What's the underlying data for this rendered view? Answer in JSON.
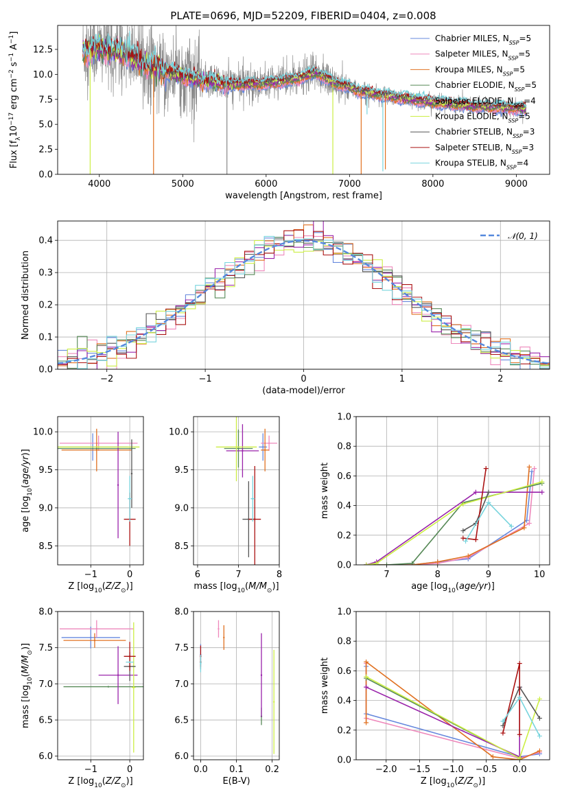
{
  "title": "PLATE=0696, MJD=52209, FIBERID=0404, z=0.008",
  "colors": {
    "Chabrier MILES": "#6688dd",
    "Salpeter MILES": "#ee88bb",
    "Kroupa MILES": "#e07020",
    "Chabrier ELODIE": "#558855",
    "Salpeter ELODIE": "#9922aa",
    "Kroupa ELODIE": "#ccee44",
    "Chabrier STELIB": "#555555",
    "Salpeter STELIB": "#aa1111",
    "Kroupa STELIB": "#77d4dd",
    "data": "#888888",
    "gaussian": "#5588dd"
  },
  "legend_spectrum": [
    {
      "base": "Chabrier MILES, N",
      "sub": "SSP",
      "tail": "=5"
    },
    {
      "base": "Salpeter MILES, N",
      "sub": "SSP",
      "tail": "=5"
    },
    {
      "base": "Kroupa MILES, N",
      "sub": "SSP",
      "tail": "=5"
    },
    {
      "base": "Chabrier ELODIE, N",
      "sub": "SSP",
      "tail": "=5"
    },
    {
      "base": "Salpeter ELODIE, N",
      "sub": "SSP",
      "tail": "=4"
    },
    {
      "base": "Kroupa ELODIE, N",
      "sub": "SSP",
      "tail": "=5"
    },
    {
      "base": "Chabrier STELIB, N",
      "sub": "SSP",
      "tail": "=3"
    },
    {
      "base": "Salpeter STELIB, N",
      "sub": "SSP",
      "tail": "=3"
    },
    {
      "base": "Kroupa STELIB, N",
      "sub": "SSP",
      "tail": "=4"
    }
  ],
  "legend_hist": "𝒩(0, 1)",
  "chart_data": [
    {
      "id": "spectrum",
      "type": "line",
      "title": "PLATE=0696, MJD=52209, FIBERID=0404, z=0.008",
      "xlabel": "wavelength [Angstrom, rest frame]",
      "ylabel": "Flux [f",
      "ylabel_full": "Flux [fλ10⁻¹⁷ erg cm⁻² s⁻¹ A⁻¹]",
      "xlim": [
        3500,
        9400
      ],
      "ylim": [
        0,
        14.9
      ],
      "xticks": [
        4000,
        5000,
        6000,
        7000,
        8000,
        9000
      ],
      "yticks": [
        0.0,
        2.5,
        5.0,
        7.5,
        10.0,
        12.5
      ],
      "continuum": [
        [
          3800,
          12.3
        ],
        [
          4000,
          12.6
        ],
        [
          4300,
          12.2
        ],
        [
          4500,
          11.2
        ],
        [
          4800,
          10.3
        ],
        [
          5200,
          9.4
        ],
        [
          5600,
          9.0
        ],
        [
          6000,
          9.1
        ],
        [
          6400,
          9.6
        ],
        [
          6600,
          10.2
        ],
        [
          6800,
          9.2
        ],
        [
          7200,
          8.2
        ],
        [
          7500,
          7.8
        ],
        [
          8000,
          7.2
        ],
        [
          8500,
          6.8
        ],
        [
          9000,
          6.6
        ],
        [
          9120,
          6.5
        ]
      ],
      "model_range": [
        3800,
        9120
      ],
      "absorption_lines": [
        {
          "x": 3890,
          "depth": 0.0,
          "series": "Kroupa ELODIE"
        },
        {
          "x": 4650,
          "depth": 0.0,
          "series": "Kroupa MILES"
        },
        {
          "x": 5530,
          "depth": 0.0,
          "series": "data"
        },
        {
          "x": 6800,
          "depth": 0.0,
          "series": "Kroupa ELODIE"
        },
        {
          "x": 7140,
          "depth": 0.0,
          "series": "Kroupa MILES"
        },
        {
          "x": 7400,
          "depth": 0.3,
          "series": "Kroupa STELIB"
        },
        {
          "x": 7430,
          "depth": 0.5,
          "series": "Kroupa MILES"
        },
        {
          "x": 7210,
          "depth": 6.0,
          "series": "Kroupa STELIB"
        }
      ]
    },
    {
      "id": "residual_hist",
      "type": "bar",
      "xlabel": "(data-model)/error",
      "ylabel": "Normed distribution",
      "xlim": [
        -2.5,
        2.5
      ],
      "ylim": [
        0,
        0.46
      ],
      "xticks": [
        -2,
        -1,
        0,
        1,
        2
      ],
      "yticks": [
        0.0,
        0.1,
        0.2,
        0.3,
        0.4
      ],
      "bin_width": 0.1,
      "gaussian": {
        "mean": 0,
        "sigma": 1,
        "label": "𝒩(0, 1)"
      }
    },
    {
      "id": "age_vs_Z",
      "type": "scatter",
      "xlabel": "Z [log10(Z/Z⊙)]",
      "ylabel": "age  [log10(age/yr)]",
      "xlim": [
        -1.85,
        0.35
      ],
      "ylim": [
        8.25,
        10.2
      ],
      "xticks": [
        -1,
        0
      ],
      "yticks": [
        8.5,
        9.0,
        9.5,
        10.0
      ],
      "points": [
        {
          "series": "Chabrier MILES",
          "x": -0.95,
          "y": 9.8,
          "xerr": 0.9,
          "yerr": 0.18
        },
        {
          "series": "Salpeter MILES",
          "x": -0.8,
          "y": 9.85,
          "xerr": 1.0,
          "yerr": 0.1
        },
        {
          "series": "Kroupa MILES",
          "x": -0.85,
          "y": 9.76,
          "xerr": 0.9,
          "yerr": 0.28
        },
        {
          "series": "Chabrier ELODIE",
          "x": -0.85,
          "y": 9.78,
          "xerr": 1.0,
          "yerr": 0.0
        },
        {
          "series": "Salpeter ELODIE",
          "x": -0.3,
          "y": 9.3,
          "xerr": 0.0,
          "yerr": 0.7
        },
        {
          "series": "Kroupa ELODIE",
          "x": -0.8,
          "y": 9.8,
          "xerr": 1.05,
          "yerr": 0.0
        },
        {
          "series": "Chabrier STELIB",
          "x": 0.05,
          "y": 9.45,
          "xerr": 0.0,
          "yerr": 0.45
        },
        {
          "series": "Salpeter STELIB",
          "x": 0.0,
          "y": 8.85,
          "xerr": 0.15,
          "yerr": 0.35
        },
        {
          "series": "Kroupa STELIB",
          "x": 0.0,
          "y": 9.12,
          "xerr": 0.05,
          "yerr": 0.3
        }
      ]
    },
    {
      "id": "age_vs_mass",
      "type": "scatter",
      "xlabel": "mass [log10(M/M⊙)]",
      "ylabel": "",
      "xlim": [
        5.9,
        8.0
      ],
      "ylim": [
        8.25,
        10.2
      ],
      "xticks": [
        6,
        7,
        8
      ],
      "yticks": [
        8.5,
        9.0,
        9.5,
        10.0
      ],
      "points": [
        {
          "series": "Chabrier MILES",
          "x": 7.6,
          "y": 9.8,
          "xerr": 0.1,
          "yerr": 0.18
        },
        {
          "series": "Salpeter MILES",
          "x": 7.75,
          "y": 9.85,
          "xerr": 0.2,
          "yerr": 0.1
        },
        {
          "series": "Kroupa MILES",
          "x": 7.65,
          "y": 9.76,
          "xerr": 0.1,
          "yerr": 0.28
        },
        {
          "series": "Chabrier ELODIE",
          "x": 7.0,
          "y": 9.78,
          "xerr": 0.35,
          "yerr": 0.25
        },
        {
          "series": "Salpeter ELODIE",
          "x": 7.1,
          "y": 9.75,
          "xerr": 0.4,
          "yerr": 0.35
        },
        {
          "series": "Kroupa ELODIE",
          "x": 6.95,
          "y": 9.8,
          "xerr": 0.5,
          "yerr": 0.45
        },
        {
          "series": "Chabrier STELIB",
          "x": 7.25,
          "y": 8.85,
          "xerr": 0.15,
          "yerr": 0.5
        },
        {
          "series": "Salpeter STELIB",
          "x": 7.4,
          "y": 8.85,
          "xerr": 0.15,
          "yerr": 0.7
        },
        {
          "series": "Kroupa STELIB",
          "x": 7.35,
          "y": 9.12,
          "xerr": 0.05,
          "yerr": 0.3
        }
      ]
    },
    {
      "id": "massweight_vs_age",
      "type": "line",
      "xlabel": "age  [log10(age/yr)]",
      "ylabel": "mass weight",
      "xlim": [
        6.4,
        10.2
      ],
      "ylim": [
        0.0,
        1.0
      ],
      "xticks": [
        7,
        8,
        9,
        10
      ],
      "yticks": [
        0.0,
        0.2,
        0.4,
        0.6,
        0.8,
        1.0
      ],
      "series": [
        {
          "name": "Chabrier MILES",
          "x": [
            6.6,
            7.5,
            8.0,
            8.6,
            9.75,
            9.85
          ],
          "y": [
            0.0,
            0.0,
            0.02,
            0.04,
            0.3,
            0.63
          ]
        },
        {
          "name": "Salpeter MILES",
          "x": [
            6.6,
            7.5,
            8.0,
            8.6,
            9.8,
            9.9
          ],
          "y": [
            0.0,
            0.0,
            0.01,
            0.05,
            0.28,
            0.65
          ]
        },
        {
          "name": "Kroupa MILES",
          "x": [
            6.6,
            7.5,
            8.0,
            8.6,
            9.7,
            9.8
          ],
          "y": [
            0.0,
            0.0,
            0.02,
            0.06,
            0.25,
            0.66
          ]
        },
        {
          "name": "Chabrier ELODIE",
          "x": [
            6.6,
            7.0,
            7.5,
            8.5,
            10.05
          ],
          "y": [
            0.0,
            0.0,
            0.01,
            0.42,
            0.55
          ]
        },
        {
          "name": "Salpeter ELODIE",
          "x": [
            6.6,
            6.8,
            8.75,
            10.05
          ],
          "y": [
            0.0,
            0.02,
            0.49,
            0.49
          ]
        },
        {
          "name": "Kroupa ELODIE",
          "x": [
            6.6,
            6.8,
            8.5,
            10.05
          ],
          "y": [
            0.0,
            0.01,
            0.41,
            0.56
          ]
        },
        {
          "name": "Chabrier STELIB",
          "x": [
            8.5,
            8.75,
            9.0
          ],
          "y": [
            0.23,
            0.28,
            0.49
          ]
        },
        {
          "name": "Salpeter STELIB",
          "x": [
            8.5,
            8.75,
            8.95
          ],
          "y": [
            0.18,
            0.17,
            0.65
          ]
        },
        {
          "name": "Kroupa STELIB",
          "x": [
            8.55,
            9.0,
            9.45
          ],
          "y": [
            0.16,
            0.42,
            0.26
          ]
        }
      ]
    },
    {
      "id": "mass_vs_Z",
      "type": "scatter",
      "xlabel": "Z [log10(Z/Z⊙)]",
      "ylabel": "mass [log10(M/M⊙)]",
      "xlim": [
        -1.85,
        0.35
      ],
      "ylim": [
        5.95,
        8.0
      ],
      "xticks": [
        -1,
        0
      ],
      "yticks": [
        6.0,
        6.5,
        7.0,
        7.5,
        8.0
      ],
      "points": [
        {
          "series": "Chabrier MILES",
          "x": -1.0,
          "y": 7.64,
          "xerr": 0.75,
          "yerr": 0.15
        },
        {
          "series": "Salpeter MILES",
          "x": -0.85,
          "y": 7.76,
          "xerr": 0.95,
          "yerr": 0.12
        },
        {
          "series": "Kroupa MILES",
          "x": -0.9,
          "y": 7.6,
          "xerr": 0.8,
          "yerr": 0.1
        },
        {
          "series": "Chabrier ELODIE",
          "x": -0.55,
          "y": 6.96,
          "xerr": 1.15,
          "yerr": 0.0
        },
        {
          "series": "Salpeter ELODIE",
          "x": -0.3,
          "y": 7.12,
          "xerr": 0.5,
          "yerr": 0.4
        },
        {
          "series": "Kroupa ELODIE",
          "x": 0.1,
          "y": 6.95,
          "xerr": 0.05,
          "yerr": 0.9
        },
        {
          "series": "Chabrier STELIB",
          "x": 0.0,
          "y": 7.24,
          "xerr": 0.15,
          "yerr": 0.2
        },
        {
          "series": "Salpeter STELIB",
          "x": 0.0,
          "y": 7.38,
          "xerr": 0.15,
          "yerr": 0.2
        },
        {
          "series": "Kroupa STELIB",
          "x": 0.0,
          "y": 7.3,
          "xerr": 0.1,
          "yerr": 0.0
        }
      ]
    },
    {
      "id": "mass_vs_ebv",
      "type": "scatter",
      "xlabel": "E(B-V)",
      "ylabel": "",
      "xlim": [
        -0.02,
        0.22
      ],
      "ylim": [
        5.95,
        8.0
      ],
      "xticks": [
        0.0,
        0.1,
        0.2
      ],
      "yticks": [
        6.0,
        6.5,
        7.0,
        7.5,
        8.0
      ],
      "points": [
        {
          "series": "Chabrier MILES",
          "x": 0.0,
          "y": 7.4,
          "yerr": 0.15
        },
        {
          "series": "Salpeter MILES",
          "x": 0.05,
          "y": 7.76,
          "yerr": 0.12
        },
        {
          "series": "Kroupa MILES",
          "x": 0.065,
          "y": 7.64,
          "yerr": 0.17
        },
        {
          "series": "Chabrier ELODIE",
          "x": 0.17,
          "y": 6.55,
          "yerr": 0.12
        },
        {
          "series": "Salpeter ELODIE",
          "x": 0.17,
          "y": 7.12,
          "yerr": 0.58
        },
        {
          "series": "Kroupa ELODIE",
          "x": 0.205,
          "y": 6.75,
          "yerr": 0.72
        },
        {
          "series": "Chabrier STELIB",
          "x": 0.0,
          "y": 7.3,
          "yerr": 0.1
        },
        {
          "series": "Salpeter STELIB",
          "x": 0.0,
          "y": 7.38,
          "yerr": 0.15
        },
        {
          "series": "Kroupa STELIB",
          "x": 0.0,
          "y": 7.28,
          "yerr": 0.12
        }
      ]
    },
    {
      "id": "massweight_vs_Z",
      "type": "line",
      "xlabel": "Z [log10(Z/Z⊙)]",
      "ylabel": "mass weight",
      "xlim": [
        -2.45,
        0.45
      ],
      "ylim": [
        0.0,
        1.0
      ],
      "xticks": [
        -2.0,
        -1.5,
        -1.0,
        -0.5,
        0.0
      ],
      "yticks": [
        0.0,
        0.2,
        0.4,
        0.6,
        0.8,
        1.0
      ],
      "series": [
        {
          "name": "Chabrier MILES",
          "x": [
            -2.3,
            -2.3,
            0.0,
            0.3
          ],
          "y": [
            0.63,
            0.31,
            0.02,
            0.04
          ]
        },
        {
          "name": "Salpeter MILES",
          "x": [
            -2.3,
            -2.3,
            0.0,
            0.3
          ],
          "y": [
            0.65,
            0.28,
            0.01,
            0.05
          ]
        },
        {
          "name": "Kroupa MILES",
          "x": [
            -2.3,
            -2.3,
            -0.4,
            0.0,
            0.3
          ],
          "y": [
            0.25,
            0.66,
            0.02,
            0.0,
            0.06
          ]
        },
        {
          "name": "Chabrier ELODIE",
          "x": [
            -2.3,
            0.0,
            0.0
          ],
          "y": [
            0.55,
            0.01,
            0.02
          ]
        },
        {
          "name": "Salpeter ELODIE",
          "x": [
            -2.3,
            0.0,
            0.0
          ],
          "y": [
            0.49,
            0.02,
            0.49
          ]
        },
        {
          "name": "Kroupa ELODIE",
          "x": [
            -2.3,
            0.0,
            0.3
          ],
          "y": [
            0.56,
            0.01,
            0.41
          ]
        },
        {
          "name": "Chabrier STELIB",
          "x": [
            -0.25,
            0.0,
            0.3
          ],
          "y": [
            0.23,
            0.49,
            0.28
          ]
        },
        {
          "name": "Salpeter STELIB",
          "x": [
            -0.25,
            0.0,
            0.0
          ],
          "y": [
            0.18,
            0.65,
            0.17
          ]
        },
        {
          "name": "Kroupa STELIB",
          "x": [
            -0.25,
            0.0,
            0.3
          ],
          "y": [
            0.26,
            0.42,
            0.16
          ]
        }
      ]
    }
  ]
}
